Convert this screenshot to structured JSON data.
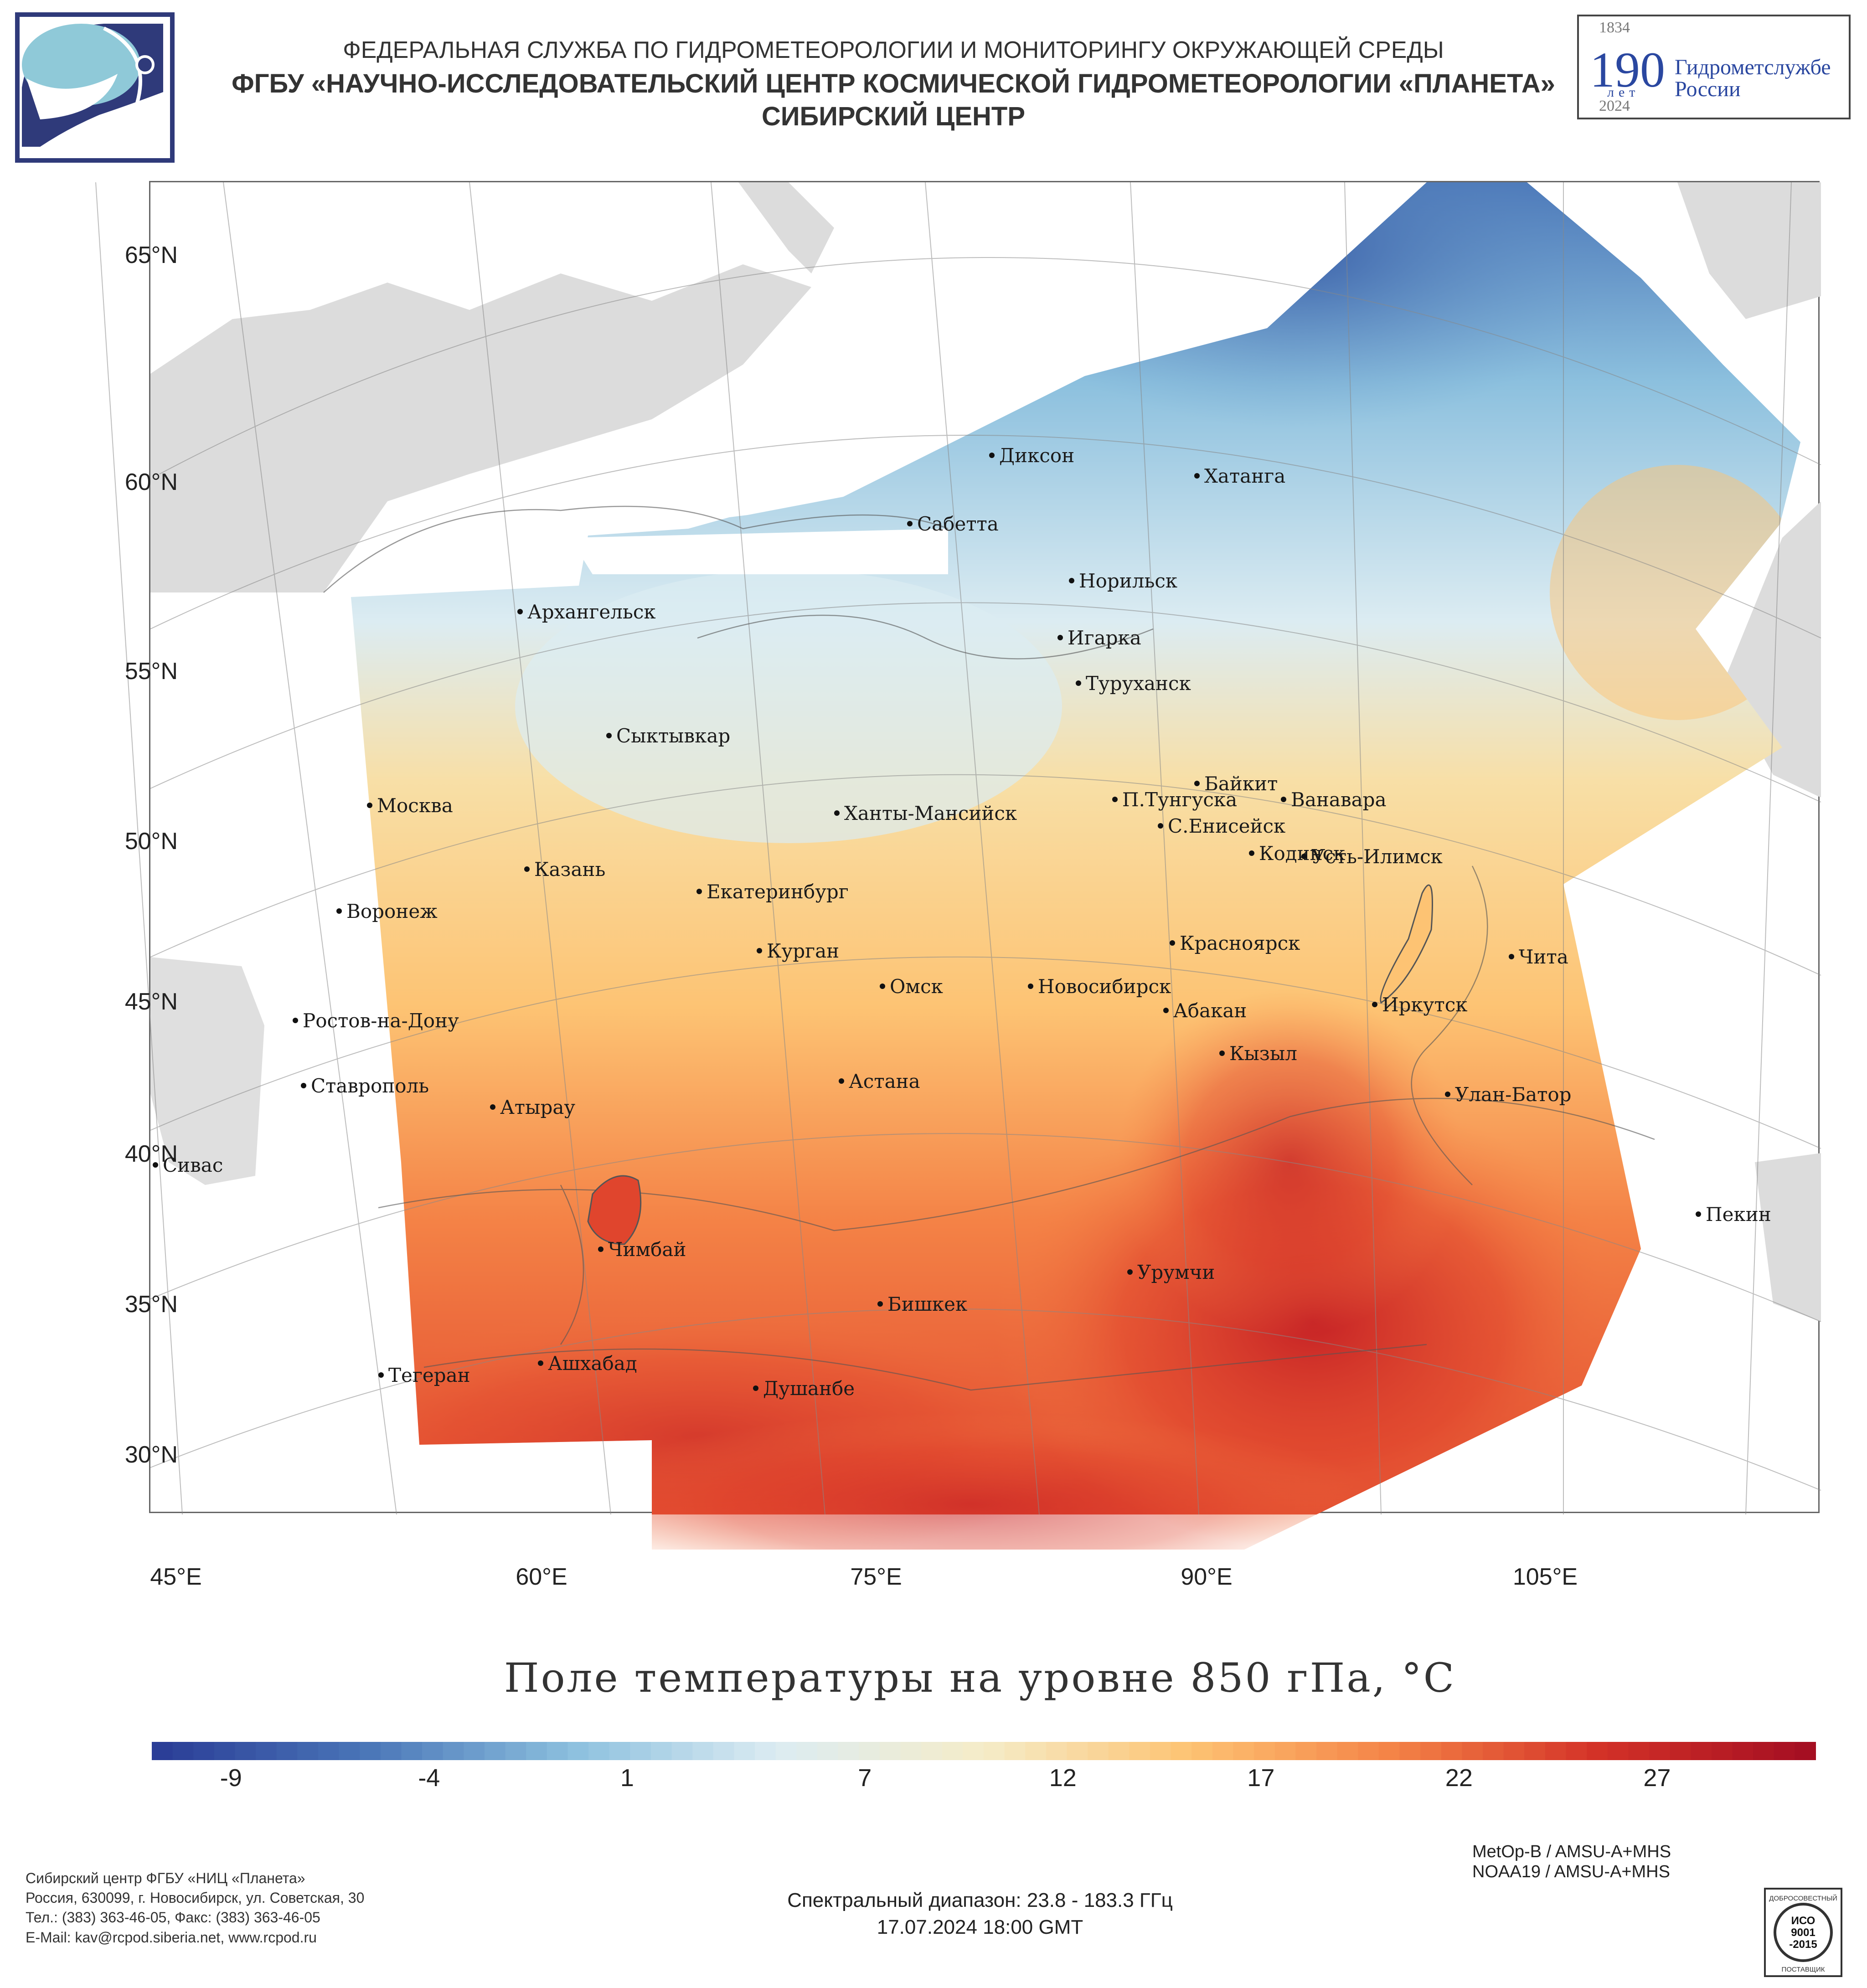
{
  "header": {
    "line1": "ФЕДЕРАЛЬНАЯ СЛУЖБА ПО ГИДРОМЕТЕОРОЛОГИИ И МОНИТОРИНГУ ОКРУЖАЮЩЕЙ СРЕДЫ",
    "line2": "ФГБУ «НАУЧНО-ИССЛЕДОВАТЕЛЬСКИЙ ЦЕНТР КОСМИЧЕСКОЙ ГИДРОМЕТЕОРОЛОГИИ «ПЛАНЕТА»",
    "line3": "СИБИРСКИЙ ЦЕНТР"
  },
  "anniversary": {
    "year_start": "1834",
    "number": "190",
    "word": "лет",
    "org_line1": "Гидрометслужбе",
    "org_line2": "России",
    "year_end": "2024"
  },
  "map": {
    "lat_labels": [
      "65°N",
      "60°N",
      "55°N",
      "50°N",
      "45°N",
      "40°N",
      "35°N",
      "30°N"
    ],
    "lon_labels": [
      "45°E",
      "60°E",
      "75°E",
      "90°E",
      "105°E"
    ],
    "cities": [
      {
        "name": "Диксон"
      },
      {
        "name": "Хатанга"
      },
      {
        "name": "Сабетта"
      },
      {
        "name": "Норильск"
      },
      {
        "name": "Архангельск"
      },
      {
        "name": "Игарка"
      },
      {
        "name": "Туруханск"
      },
      {
        "name": "Сыктывкар"
      },
      {
        "name": "Байкит"
      },
      {
        "name": "Москва"
      },
      {
        "name": "Ханты-Мансийск"
      },
      {
        "name": "П.Тунгуска"
      },
      {
        "name": "Ванавара"
      },
      {
        "name": "С.Енисейск"
      },
      {
        "name": "Кодинск"
      },
      {
        "name": "Усть-Илимск"
      },
      {
        "name": "Казань"
      },
      {
        "name": "Екатеринбург"
      },
      {
        "name": "Воронеж"
      },
      {
        "name": "Красноярск"
      },
      {
        "name": "Курган"
      },
      {
        "name": "Чита"
      },
      {
        "name": "Омск"
      },
      {
        "name": "Новосибирск"
      },
      {
        "name": "Иркутск"
      },
      {
        "name": "Ростов-на-Дону"
      },
      {
        "name": "Абакан"
      },
      {
        "name": "Кызыл"
      },
      {
        "name": "Ставрополь"
      },
      {
        "name": "Астана"
      },
      {
        "name": "Улан-Батор"
      },
      {
        "name": "Атырау"
      },
      {
        "name": "Сивас"
      },
      {
        "name": "Пекин"
      },
      {
        "name": "Чимбай"
      },
      {
        "name": "Урумчи"
      },
      {
        "name": "Бишкек"
      },
      {
        "name": "Ашхабад"
      },
      {
        "name": "Тегеран"
      },
      {
        "name": "Душанбе"
      }
    ]
  },
  "title": "Поле температуры на уровне 850 гПа, °С",
  "colorbar": {
    "min": -11,
    "max": 31,
    "ticks": [
      "-9",
      "-4",
      "1",
      "7",
      "12",
      "17",
      "22",
      "27"
    ],
    "tick_values": [
      -9,
      -4,
      1,
      7,
      12,
      17,
      22,
      27
    ],
    "colors": [
      "#2b3e97",
      "#4a76b8",
      "#8cc0de",
      "#dcecf2",
      "#f5ecc8",
      "#fdc373",
      "#f48246",
      "#d33127",
      "#a50f22"
    ]
  },
  "footer": {
    "left": [
      "Сибирский центр ФГБУ «НИЦ «Планета»",
      "Россия, 630099, г. Новосибирск, ул. Советская, 30",
      "Тел.: (383) 363-46-05, Факс: (383) 363-46-05",
      "E-Mail: kav@rcpod.siberia.net, www.rcpod.ru"
    ],
    "center_line1": "Спектральный диапазон: 23.8 - 183.3 ГГц",
    "center_line2": "17.07.2024 18:00 GMT",
    "right_line1": "MetOp-B / AMSU-A+MHS",
    "right_line2": "NOAA19 / AMSU-A+MHS",
    "iso_text": [
      "ДОБРОСОВЕСТНЫЙ",
      "ИСО",
      "9001",
      "-2015",
      "ПОСТАВЩИК"
    ]
  }
}
